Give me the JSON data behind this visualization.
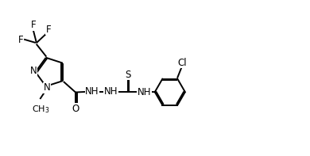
{
  "background": "#ffffff",
  "line_color": "#000000",
  "line_width": 1.4,
  "font_size": 8.5,
  "xlim": [
    0,
    10
  ],
  "ylim": [
    0,
    5.1
  ],
  "figsize": [
    3.9,
    1.97
  ],
  "dpi": 100
}
